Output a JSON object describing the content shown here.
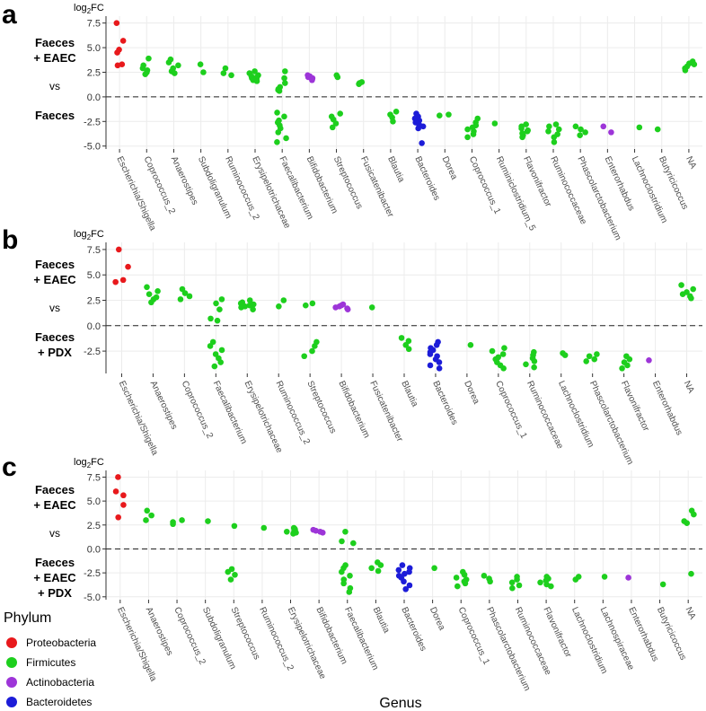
{
  "chart_data": [
    {
      "type": "scatter",
      "panel": "a",
      "ylabel": "log2FC",
      "comparison": {
        "top_line1": "Faeces",
        "top_line2": "+ EAEC",
        "middle": "vs",
        "bottom_lines": [
          "Faeces"
        ]
      },
      "yticks": [
        7.5,
        5.0,
        2.5,
        0.0,
        -2.5,
        -5.0
      ],
      "ytick_labels": [
        "7.5",
        "5.0",
        "2.5",
        "0.0",
        "-2.5",
        "-5.0"
      ],
      "ylim": [
        -5.3,
        8.2
      ],
      "categories": [
        "Escherichia/Shigella",
        "Coprococcus_2",
        "Anaerostipes",
        "Subdoligranulum",
        "Ruminococcus_2",
        "Erysipelotrichaceae",
        "Faecalibacterium",
        "Bifidobacterium",
        "Streptococcus",
        "Fusicatenibacter",
        "Blautia",
        "Bacteroides",
        "Dorea",
        "Coprococcus_1",
        "Ruminiclostridium_5",
        "Flavonifractor",
        "Ruminococcaceae",
        "Phascolarctobacterium",
        "Enterorhabdus",
        "Lachnoclostridium",
        "Butyricicoccus",
        "NA"
      ],
      "groups": [
        {
          "phylum": "Proteobacteria",
          "values": [
            7.5,
            5.7,
            4.8,
            4.5,
            3.3,
            3.2
          ]
        },
        {
          "phylum": "Firmicutes",
          "values": [
            3.9,
            3.2,
            2.9,
            2.7,
            2.5,
            2.3
          ]
        },
        {
          "phylum": "Firmicutes",
          "values": [
            3.8,
            3.5,
            3.2,
            2.9,
            2.6,
            2.4
          ]
        },
        {
          "phylum": "Firmicutes",
          "values": [
            3.3,
            2.5
          ]
        },
        {
          "phylum": "Firmicutes",
          "values": [
            2.9,
            2.4,
            2.2
          ]
        },
        {
          "phylum": "Firmicutes",
          "values": [
            2.6,
            2.4,
            2.2,
            2.1,
            2.0,
            1.9,
            1.8,
            1.7,
            1.6
          ]
        },
        {
          "phylum": "Firmicutes",
          "values": [
            2.6,
            1.9,
            1.4,
            1.0,
            0.8,
            0.7,
            0.6,
            -1.6,
            -2.0,
            -2.4,
            -2.6,
            -2.9,
            -3.2,
            -3.6,
            -4.2,
            -4.6
          ]
        },
        {
          "phylum": "Actinobacteria",
          "values": [
            2.2,
            2.1,
            2.0,
            1.9,
            1.8,
            1.7
          ]
        },
        {
          "phylum": "Firmicutes",
          "values": [
            2.2,
            2.0,
            -1.7,
            -2.0,
            -2.3,
            -2.7,
            -3.1
          ]
        },
        {
          "phylum": "Firmicutes",
          "values": [
            1.5,
            1.4,
            1.3
          ]
        },
        {
          "phylum": "Firmicutes",
          "values": [
            -1.5,
            -1.8,
            -2.1,
            -2.5
          ]
        },
        {
          "phylum": "Bacteroidetes",
          "values": [
            -1.7,
            -2.0,
            -2.2,
            -2.4,
            -2.6,
            -2.8,
            -3.0,
            -3.2,
            -4.7
          ]
        },
        {
          "phylum": "Firmicutes",
          "values": [
            -1.8,
            -1.9
          ]
        },
        {
          "phylum": "Firmicutes",
          "values": [
            -2.2,
            -2.6,
            -2.9,
            -3.1,
            -3.3,
            -3.5,
            -3.8,
            -4.1
          ]
        },
        {
          "phylum": "Firmicutes",
          "values": [
            -2.7
          ]
        },
        {
          "phylum": "Firmicutes",
          "values": [
            -2.8,
            -3.0,
            -3.2,
            -3.4,
            -3.5,
            -3.7,
            -3.9,
            -4.1
          ]
        },
        {
          "phylum": "Firmicutes",
          "values": [
            -2.8,
            -3.0,
            -3.3,
            -3.5,
            -3.8,
            -4.1,
            -4.6
          ]
        },
        {
          "phylum": "Firmicutes",
          "values": [
            -3.0,
            -3.3,
            -3.6,
            -3.9
          ]
        },
        {
          "phylum": "Actinobacteria",
          "values": [
            -3.0,
            -3.6
          ]
        },
        {
          "phylum": "Firmicutes",
          "values": [
            -3.1
          ]
        },
        {
          "phylum": "Firmicutes",
          "values": [
            -3.3
          ]
        },
        {
          "phylum": "Firmicutes",
          "values": [
            3.6,
            3.4,
            3.3,
            3.1,
            2.9,
            2.7
          ]
        }
      ]
    },
    {
      "type": "scatter",
      "panel": "b",
      "ylabel": "log2FC",
      "comparison": {
        "top_line1": "Faeces",
        "top_line2": "+ EAEC",
        "middle": "vs",
        "bottom_lines": [
          "Faeces",
          "+ PDX"
        ]
      },
      "yticks": [
        7.5,
        5.0,
        2.5,
        0.0,
        -2.5
      ],
      "ytick_labels": [
        "7.5",
        "5.0",
        "2.5",
        "0.0",
        "-2.5"
      ],
      "ylim": [
        -4.7,
        8.2
      ],
      "categories": [
        "Escherichia/Shigella",
        "Anaerostipes",
        "Coprococcus_2",
        "Faecalibacterium",
        "Erysipelotrichaceae",
        "Ruminococcus_2",
        "Streptococcus",
        "Bifidobacterium",
        "Fusicatenibacter",
        "Blautia",
        "Bacteroides",
        "Dorea",
        "Coprococcus_1",
        "Ruminococcaceae",
        "Lachnoclostridium",
        "Phascolarctobacterium",
        "Flavonifractor",
        "Enterorhabdus",
        "NA"
      ],
      "groups": [
        {
          "phylum": "Proteobacteria",
          "values": [
            7.5,
            5.8,
            4.5,
            4.3
          ]
        },
        {
          "phylum": "Firmicutes",
          "values": [
            3.8,
            3.4,
            3.1,
            2.8,
            2.6,
            2.3
          ]
        },
        {
          "phylum": "Firmicutes",
          "values": [
            3.6,
            3.2,
            2.9,
            2.6
          ]
        },
        {
          "phylum": "Firmicutes",
          "values": [
            2.6,
            2.2,
            1.6,
            0.7,
            0.5,
            -1.6,
            -2.0,
            -2.4,
            -2.8,
            -3.2,
            -3.6,
            -4.0
          ]
        },
        {
          "phylum": "Firmicutes",
          "values": [
            2.5,
            2.3,
            2.2,
            2.1,
            2.0,
            1.9,
            1.8,
            1.6
          ]
        },
        {
          "phylum": "Firmicutes",
          "values": [
            2.5,
            1.9
          ]
        },
        {
          "phylum": "Firmicutes",
          "values": [
            2.2,
            2.0,
            -1.6,
            -2.0,
            -2.5,
            -3.0
          ]
        },
        {
          "phylum": "Actinobacteria",
          "values": [
            2.1,
            2.0,
            1.9,
            1.8,
            1.7,
            1.6
          ]
        },
        {
          "phylum": "Firmicutes",
          "values": [
            1.8
          ]
        },
        {
          "phylum": "Firmicutes",
          "values": [
            -1.2,
            -1.5,
            -1.9,
            -2.3
          ]
        },
        {
          "phylum": "Bacteroidetes",
          "values": [
            -1.6,
            -1.9,
            -2.2,
            -2.4,
            -2.6,
            -2.8,
            -3.0,
            -3.3,
            -3.6,
            -3.9,
            -4.2
          ]
        },
        {
          "phylum": "Firmicutes",
          "values": [
            -1.9
          ]
        },
        {
          "phylum": "Firmicutes",
          "values": [
            -2.2,
            -2.5,
            -2.8,
            -3.1,
            -3.3,
            -3.6,
            -3.9,
            -4.2
          ]
        },
        {
          "phylum": "Firmicutes",
          "values": [
            -2.6,
            -2.9,
            -3.2,
            -3.5,
            -3.8,
            -4.1
          ]
        },
        {
          "phylum": "Firmicutes",
          "values": [
            -2.7,
            -2.9
          ]
        },
        {
          "phylum": "Firmicutes",
          "values": [
            -2.8,
            -3.0,
            -3.3,
            -3.5
          ]
        },
        {
          "phylum": "Firmicutes",
          "values": [
            -3.0,
            -3.3,
            -3.6,
            -3.9,
            -4.2
          ]
        },
        {
          "phylum": "Actinobacteria",
          "values": [
            -3.4
          ]
        },
        {
          "phylum": "Firmicutes",
          "values": [
            4.0,
            3.6,
            3.3,
            3.1,
            2.9,
            2.7
          ]
        }
      ]
    },
    {
      "type": "scatter",
      "panel": "c",
      "ylabel": "log2FC",
      "comparison": {
        "top_line1": "Faeces",
        "top_line2": "+ EAEC",
        "middle": "vs",
        "bottom_lines": [
          "Faeces",
          "+ EAEC",
          "+ PDX"
        ]
      },
      "yticks": [
        7.5,
        5.0,
        2.5,
        0.0,
        -2.5,
        -5.0
      ],
      "ytick_labels": [
        "7.5",
        "5.0",
        "2.5",
        "0.0",
        "-2.5",
        "-5.0"
      ],
      "ylim": [
        -5.3,
        8.2
      ],
      "categories": [
        "Escherichia/Shigella",
        "Anaerostipes",
        "Coprococcus_2",
        "Subdoligranulum",
        "Streptococcus",
        "Ruminococcus_2",
        "Erysipelotrichaceae",
        "Bifidobacterium",
        "Faecalibacterium",
        "Blautia",
        "Bacteroides",
        "Dorea",
        "Coprococcus_1",
        "Phascolarctobacterium",
        "Ruminococcaceae",
        "Flavonifractor",
        "Lachnoclostridium",
        "Lachnospiraceae",
        "Enterorhabdus",
        "Butyricicoccus",
        "NA"
      ],
      "groups": [
        {
          "phylum": "Proteobacteria",
          "values": [
            7.5,
            6.0,
            5.6,
            4.6,
            3.3
          ]
        },
        {
          "phylum": "Firmicutes",
          "values": [
            4.0,
            3.5,
            3.0
          ]
        },
        {
          "phylum": "Firmicutes",
          "values": [
            3.0,
            2.8,
            2.6
          ]
        },
        {
          "phylum": "Firmicutes",
          "values": [
            2.9
          ]
        },
        {
          "phylum": "Firmicutes",
          "values": [
            2.4,
            -2.1,
            -2.4,
            -2.7,
            -3.2
          ]
        },
        {
          "phylum": "Firmicutes",
          "values": [
            2.2
          ]
        },
        {
          "phylum": "Firmicutes",
          "values": [
            2.2,
            2.1,
            2.0,
            1.9,
            1.8,
            1.7,
            1.6
          ]
        },
        {
          "phylum": "Actinobacteria",
          "values": [
            2.0,
            1.9,
            1.8,
            1.7
          ]
        },
        {
          "phylum": "Firmicutes",
          "values": [
            1.8,
            0.8,
            0.6,
            -1.7,
            -2.0,
            -2.4,
            -2.8,
            -3.2,
            -3.6,
            -4.1,
            -4.5
          ]
        },
        {
          "phylum": "Firmicutes",
          "values": [
            -1.4,
            -1.7,
            -2.0,
            -2.3
          ]
        },
        {
          "phylum": "Bacteroidetes",
          "values": [
            -1.7,
            -2.0,
            -2.2,
            -2.4,
            -2.6,
            -2.8,
            -3.0,
            -3.4,
            -3.8,
            -4.2
          ]
        },
        {
          "phylum": "Firmicutes",
          "values": [
            -2.0
          ]
        },
        {
          "phylum": "Firmicutes",
          "values": [
            -2.4,
            -2.7,
            -3.0,
            -3.2,
            -3.4,
            -3.6,
            -3.9
          ]
        },
        {
          "phylum": "Firmicutes",
          "values": [
            -2.8,
            -3.1,
            -3.4
          ]
        },
        {
          "phylum": "Firmicutes",
          "values": [
            -2.9,
            -3.2,
            -3.5,
            -3.8,
            -4.1
          ]
        },
        {
          "phylum": "Firmicutes",
          "values": [
            -2.9,
            -3.1,
            -3.3,
            -3.5,
            -3.7,
            -3.9
          ]
        },
        {
          "phylum": "Firmicutes",
          "values": [
            -2.9,
            -3.2
          ]
        },
        {
          "phylum": "Firmicutes",
          "values": [
            -2.9
          ]
        },
        {
          "phylum": "Actinobacteria",
          "values": [
            -3.0
          ]
        },
        {
          "phylum": "Firmicutes",
          "values": [
            -3.7
          ]
        },
        {
          "phylum": "Firmicutes",
          "values": [
            4.0,
            3.6,
            2.9,
            2.7,
            -2.6
          ]
        }
      ]
    }
  ],
  "legend": {
    "title": "Phylum",
    "entries": [
      {
        "name": "Proteobacteria",
        "color": "#e8191c"
      },
      {
        "name": "Firmicutes",
        "color": "#1dcf1d"
      },
      {
        "name": "Actinobacteria",
        "color": "#9d35d8"
      },
      {
        "name": "Bacteroidetes",
        "color": "#1c1cd8"
      }
    ]
  },
  "xlabel": "Genus"
}
